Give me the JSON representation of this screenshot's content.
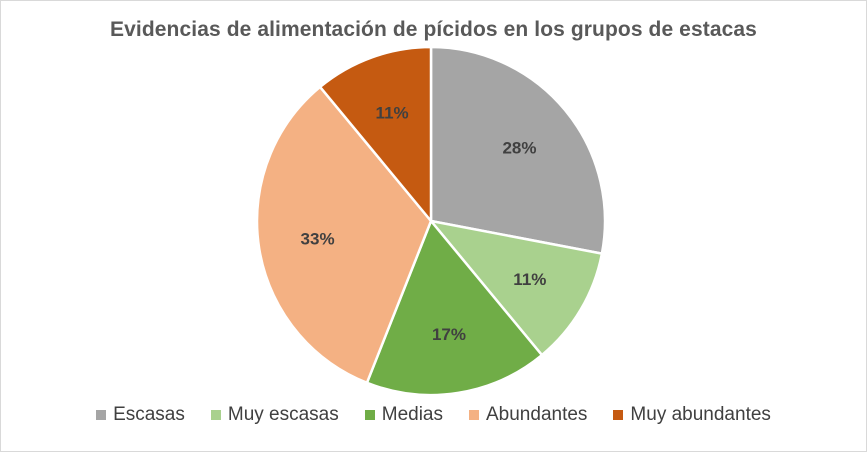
{
  "chart_data": {
    "type": "pie",
    "title": "Evidencias de alimentación de pícidos  en los grupos de estacas",
    "categories": [
      "Escasas",
      "Muy escasas",
      "Medias",
      "Abundantes",
      "Muy abundantes"
    ],
    "values": [
      28,
      11,
      17,
      33,
      11
    ],
    "labels": [
      "28%",
      "11%",
      "17%",
      "33%",
      "11%"
    ],
    "colors": [
      "#a5a5a5",
      "#a9d18e",
      "#70ad47",
      "#f4b183",
      "#c55a11"
    ],
    "start": "12 o'clock, clockwise",
    "legend": "bottom"
  }
}
